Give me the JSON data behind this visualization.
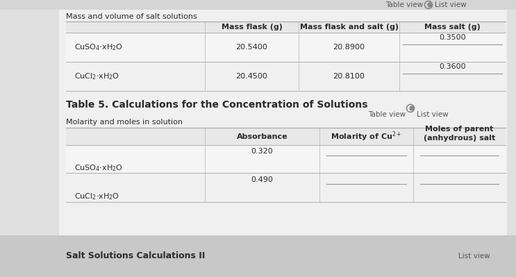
{
  "bg_color": "#e0e0e0",
  "panel_bg": "#f2f2f2",
  "cell_light": "#ebebeb",
  "title1": "Mass and volume of salt solutions",
  "table5_title": "Table 5. Calculations for the Concentration of Solutions",
  "subtitle2": "Molarity and moles in solution",
  "table_view_label": "Table view",
  "list_view_label": "List view",
  "bottom_label": "Salt Solutions Calculations II",
  "col_headers_1": [
    "Mass flask (g)",
    "Mass flask and salt (g)",
    "Mass salt (g)"
  ],
  "row_data_1": [
    [
      "20.5400",
      "20.8900",
      "0.3500"
    ],
    [
      "20.4500",
      "20.8100",
      "0.3600"
    ]
  ],
  "col_headers_2": [
    "Absorbance",
    "Molarity of Cu$^{2+}$",
    "Moles of parent\n(anhydrous) salt"
  ],
  "row_data_2": [
    [
      "0.320",
      "",
      ""
    ],
    [
      "0.490",
      "",
      ""
    ]
  ],
  "text_color": "#2a2a2a",
  "header_color": "#2a2a2a",
  "line_color": "#b0b0b0",
  "font_size_title": 8,
  "font_size_cell": 8,
  "font_size_header": 8,
  "font_size_table5": 10
}
